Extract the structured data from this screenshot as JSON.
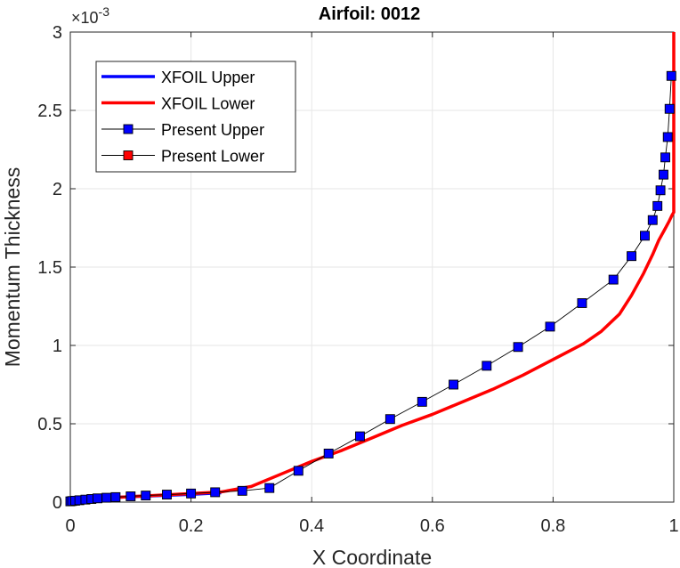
{
  "chart_data": {
    "type": "line",
    "title": "Airfoil: 0012",
    "xlabel": "X Coordinate",
    "ylabel": "Momentum Thickness",
    "y_exponent_base": "×10",
    "y_exponent_power": "-3",
    "xlim": [
      0,
      1
    ],
    "ylim": [
      0,
      3
    ],
    "xticks": [
      0,
      0.2,
      0.4,
      0.6,
      0.8,
      1
    ],
    "xtick_labels": [
      "0",
      "0.2",
      "0.4",
      "0.6",
      "0.8",
      "1"
    ],
    "yticks": [
      0,
      0.5,
      1,
      1.5,
      2,
      2.5,
      3
    ],
    "ytick_labels": [
      "0",
      "0.5",
      "1",
      "1.5",
      "2",
      "2.5",
      "3"
    ],
    "grid": true,
    "legend_position": "top-left",
    "series": [
      {
        "name": "XFOIL Upper",
        "color": "#0000ff",
        "style": "line",
        "x": [
          0,
          0.01,
          0.05,
          0.1,
          0.2,
          0.25
        ],
        "y": [
          0.005,
          0.01,
          0.025,
          0.035,
          0.05,
          0.06
        ]
      },
      {
        "name": "XFOIL Lower",
        "color": "#ff0000",
        "style": "line",
        "x": [
          0,
          0.02,
          0.05,
          0.1,
          0.15,
          0.2,
          0.25,
          0.3,
          0.35,
          0.4,
          0.45,
          0.5,
          0.55,
          0.6,
          0.65,
          0.7,
          0.75,
          0.8,
          0.85,
          0.88,
          0.91,
          0.93,
          0.95,
          0.965,
          0.975,
          0.985,
          0.992,
          0.997,
          1.0,
          1.0
        ],
        "y": [
          0.005,
          0.015,
          0.025,
          0.035,
          0.045,
          0.055,
          0.065,
          0.1,
          0.18,
          0.26,
          0.33,
          0.41,
          0.49,
          0.56,
          0.64,
          0.72,
          0.81,
          0.91,
          1.01,
          1.09,
          1.2,
          1.32,
          1.46,
          1.58,
          1.67,
          1.74,
          1.79,
          1.83,
          1.85,
          3.0
        ]
      },
      {
        "name": "Present Upper",
        "color": "#0000ff",
        "style": "marker-line",
        "x": [
          0,
          0.003,
          0.008,
          0.015,
          0.025,
          0.035,
          0.045,
          0.06,
          0.075,
          0.1,
          0.125,
          0.16,
          0.2,
          0.24,
          0.285,
          0.33,
          0.378,
          0.428,
          0.48,
          0.53,
          0.583,
          0.635,
          0.69,
          0.742,
          0.795,
          0.848,
          0.9,
          0.93,
          0.952,
          0.965,
          0.973,
          0.978,
          0.983,
          0.986,
          0.99,
          0.993,
          0.996
        ],
        "y": [
          0.005,
          0.007,
          0.009,
          0.012,
          0.016,
          0.02,
          0.024,
          0.028,
          0.032,
          0.037,
          0.042,
          0.048,
          0.055,
          0.063,
          0.072,
          0.09,
          0.2,
          0.31,
          0.42,
          0.53,
          0.64,
          0.75,
          0.87,
          0.99,
          1.12,
          1.27,
          1.42,
          1.57,
          1.7,
          1.8,
          1.89,
          1.99,
          2.09,
          2.2,
          2.33,
          2.51,
          2.72
        ]
      },
      {
        "name": "Present Lower",
        "color": "#ff0000",
        "style": "marker-line",
        "x": [],
        "y": []
      }
    ]
  }
}
